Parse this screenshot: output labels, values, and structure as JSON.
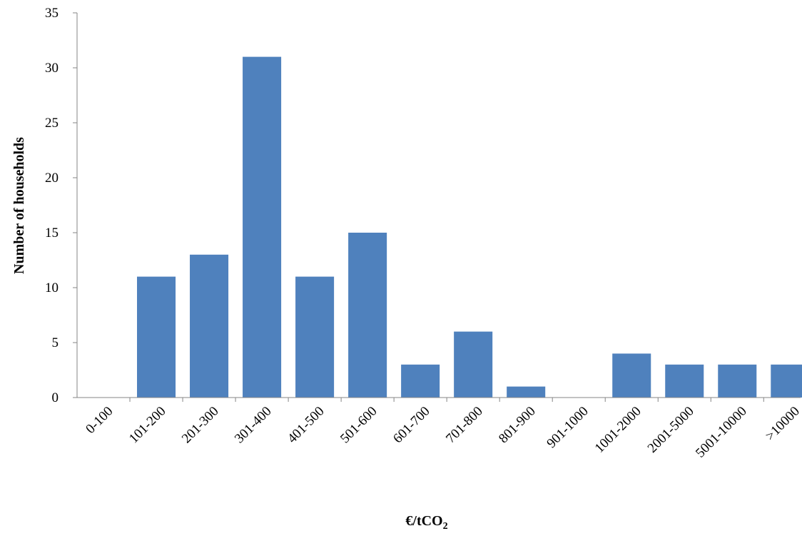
{
  "chart_data": {
    "type": "bar",
    "title": "",
    "xlabel": "€/tCO",
    "xlabel_subscript": "2",
    "ylabel": "Number of households",
    "ylim": [
      0,
      35
    ],
    "yticks": [
      0,
      5,
      10,
      15,
      20,
      25,
      30,
      35
    ],
    "grid": false,
    "legend": "none",
    "bar_color": "#4f81bd",
    "categories": [
      "0-100",
      "101-200",
      "201-300",
      "301-400",
      "401-500",
      "501-600",
      "601-700",
      "701-800",
      "801-900",
      "901-1000",
      "1001-2000",
      "2001-5000",
      "5001-10000",
      ">10000"
    ],
    "values": [
      0,
      11,
      13,
      31,
      11,
      15,
      3,
      6,
      1,
      0,
      4,
      3,
      3,
      3
    ]
  }
}
